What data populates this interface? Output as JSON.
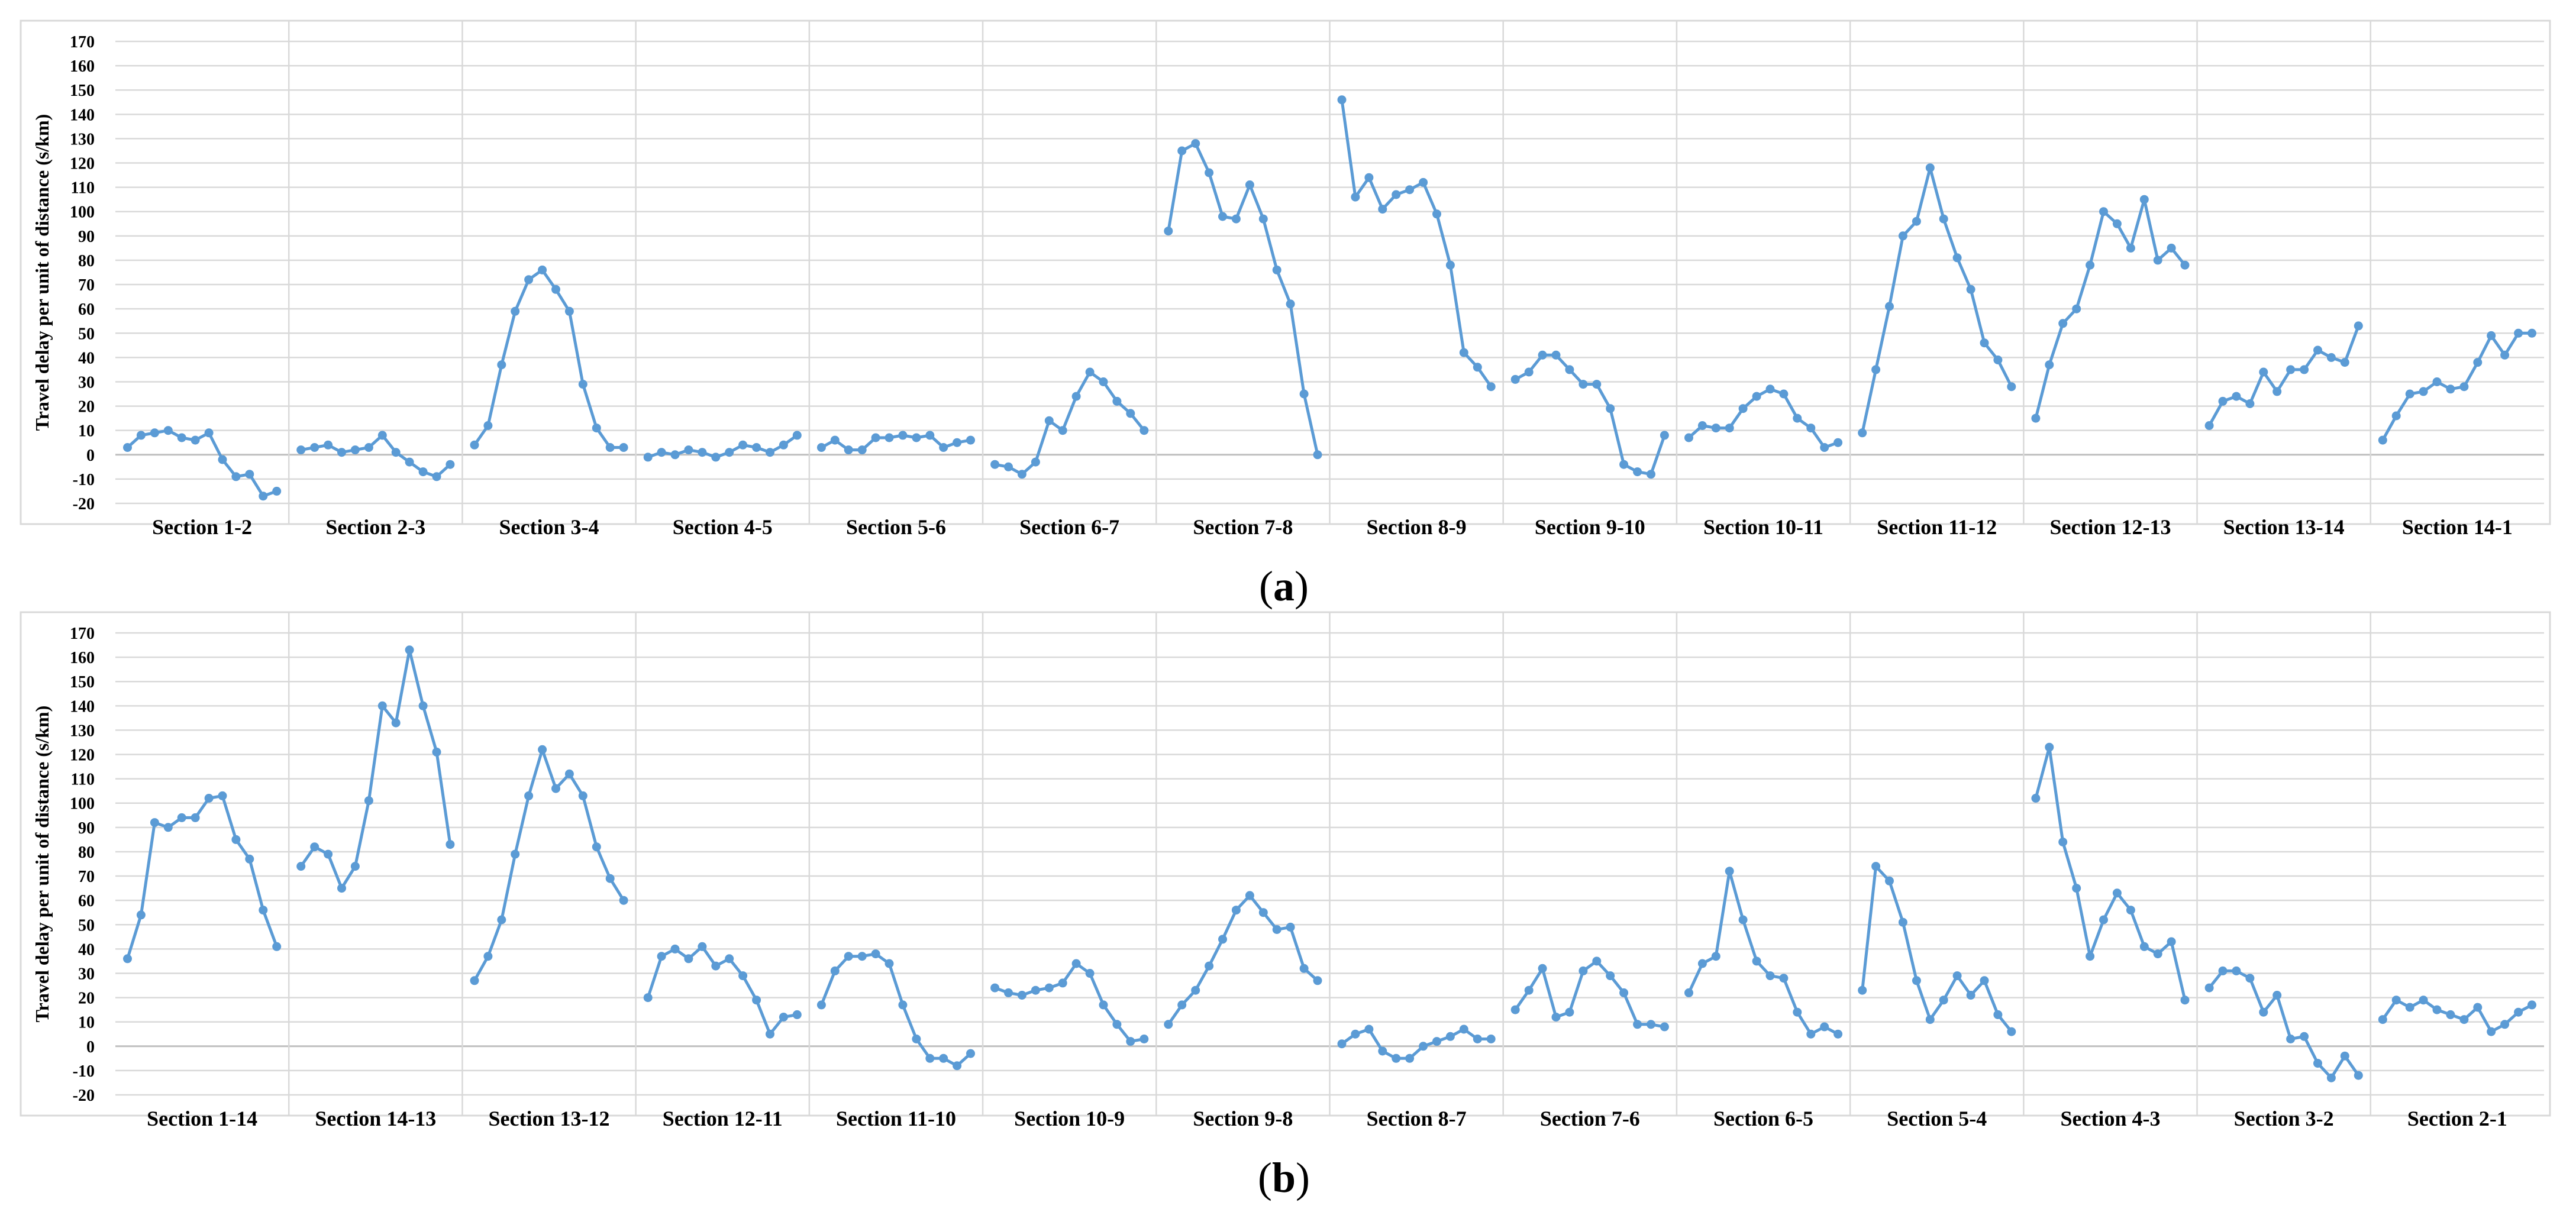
{
  "figure": {
    "series_color": "#5b9bd5",
    "grid_color": "#d9d9d9"
  },
  "chart_data": [
    {
      "type": "line",
      "panel_label": "a",
      "caption_open": "(",
      "caption_close": ")",
      "ylabel": "Travel delay per unit of distance (s/km)",
      "ylim": [
        -20,
        170
      ],
      "yticks": [
        -20,
        -10,
        0,
        10,
        20,
        30,
        40,
        50,
        60,
        70,
        80,
        90,
        100,
        110,
        120,
        130,
        140,
        150,
        160,
        170
      ],
      "grid": true,
      "sections": [
        {
          "name": "Section 1-2",
          "values": [
            3,
            8,
            9,
            10,
            7,
            6,
            9,
            -2,
            -9,
            -8,
            -17,
            -15
          ]
        },
        {
          "name": "Section 2-3",
          "values": [
            2,
            3,
            4,
            1,
            2,
            3,
            8,
            1,
            -3,
            -7,
            -9,
            -4
          ]
        },
        {
          "name": "Section 3-4",
          "values": [
            4,
            12,
            37,
            59,
            72,
            76,
            68,
            59,
            29,
            11,
            3,
            3
          ]
        },
        {
          "name": "Section 4-5",
          "values": [
            -1,
            1,
            0,
            2,
            1,
            -1,
            1,
            4,
            3,
            1,
            4,
            8
          ]
        },
        {
          "name": "Section 5-6",
          "values": [
            3,
            6,
            2,
            2,
            7,
            7,
            8,
            7,
            8,
            3,
            5,
            6
          ]
        },
        {
          "name": "Section 6-7",
          "values": [
            -4,
            -5,
            -8,
            -3,
            14,
            10,
            24,
            34,
            30,
            22,
            17,
            10
          ]
        },
        {
          "name": "Section 7-8",
          "values": [
            92,
            125,
            128,
            116,
            98,
            97,
            111,
            97,
            76,
            62,
            25,
            0
          ]
        },
        {
          "name": "Section 8-9",
          "values": [
            146,
            106,
            114,
            101,
            107,
            109,
            112,
            99,
            78,
            42,
            36,
            28
          ]
        },
        {
          "name": "Section 9-10",
          "values": [
            31,
            34,
            41,
            41,
            35,
            29,
            29,
            19,
            -4,
            -7,
            -8,
            8
          ]
        },
        {
          "name": "Section 10-11",
          "values": [
            7,
            12,
            11,
            11,
            19,
            24,
            27,
            25,
            15,
            11,
            3,
            5
          ]
        },
        {
          "name": "Section 11-12",
          "values": [
            9,
            35,
            61,
            90,
            96,
            118,
            97,
            81,
            68,
            46,
            39,
            28
          ]
        },
        {
          "name": "Section 12-13",
          "values": [
            15,
            37,
            54,
            60,
            78,
            100,
            95,
            85,
            105,
            80,
            85,
            78
          ]
        },
        {
          "name": "Section 13-14",
          "values": [
            12,
            22,
            24,
            21,
            34,
            26,
            35,
            35,
            43,
            40,
            38,
            53
          ]
        },
        {
          "name": "Section 14-1",
          "values": [
            6,
            16,
            25,
            26,
            30,
            27,
            28,
            38,
            49,
            41,
            50,
            50
          ]
        }
      ]
    },
    {
      "type": "line",
      "panel_label": "b",
      "caption_open": "(",
      "caption_close": ")",
      "ylabel": "Travel delay per unit of distance (s/km)",
      "ylim": [
        -20,
        170
      ],
      "yticks": [
        -20,
        -10,
        0,
        10,
        20,
        30,
        40,
        50,
        60,
        70,
        80,
        90,
        100,
        110,
        120,
        130,
        140,
        150,
        160,
        170
      ],
      "grid": true,
      "sections": [
        {
          "name": "Section 1-14",
          "values": [
            36,
            54,
            92,
            90,
            94,
            94,
            102,
            103,
            85,
            77,
            56,
            41
          ]
        },
        {
          "name": "Section 14-13",
          "values": [
            74,
            82,
            79,
            65,
            74,
            101,
            140,
            133,
            163,
            140,
            121,
            83
          ]
        },
        {
          "name": "Section 13-12",
          "values": [
            27,
            37,
            52,
            79,
            103,
            122,
            106,
            112,
            103,
            82,
            69,
            60
          ]
        },
        {
          "name": "Section 12-11",
          "values": [
            20,
            37,
            40,
            36,
            41,
            33,
            36,
            29,
            19,
            5,
            12,
            13
          ]
        },
        {
          "name": "Section 11-10",
          "values": [
            17,
            31,
            37,
            37,
            38,
            34,
            17,
            3,
            -5,
            -5,
            -8,
            -3
          ]
        },
        {
          "name": "Section 10-9",
          "values": [
            24,
            22,
            21,
            23,
            24,
            26,
            34,
            30,
            17,
            9,
            2,
            3
          ]
        },
        {
          "name": "Section 9-8",
          "values": [
            9,
            17,
            23,
            33,
            44,
            56,
            62,
            55,
            48,
            49,
            32,
            27
          ]
        },
        {
          "name": "Section 8-7",
          "values": [
            1,
            5,
            7,
            -2,
            -5,
            -5,
            0,
            2,
            4,
            7,
            3,
            3
          ]
        },
        {
          "name": "Section 7-6",
          "values": [
            15,
            23,
            32,
            12,
            14,
            31,
            35,
            29,
            22,
            9,
            9,
            8
          ]
        },
        {
          "name": "Section 6-5",
          "values": [
            22,
            34,
            37,
            72,
            52,
            35,
            29,
            28,
            14,
            5,
            8,
            5
          ]
        },
        {
          "name": "Section 5-4",
          "values": [
            23,
            74,
            68,
            51,
            27,
            11,
            19,
            29,
            21,
            27,
            13,
            6
          ]
        },
        {
          "name": "Section 4-3",
          "values": [
            102,
            123,
            84,
            65,
            37,
            52,
            63,
            56,
            41,
            38,
            43,
            19
          ]
        },
        {
          "name": "Section 3-2",
          "values": [
            24,
            31,
            31,
            28,
            14,
            21,
            3,
            4,
            -7,
            -13,
            -4,
            -12
          ]
        },
        {
          "name": "Section 2-1",
          "values": [
            11,
            19,
            16,
            19,
            15,
            13,
            11,
            16,
            6,
            9,
            14,
            17
          ]
        }
      ]
    }
  ]
}
